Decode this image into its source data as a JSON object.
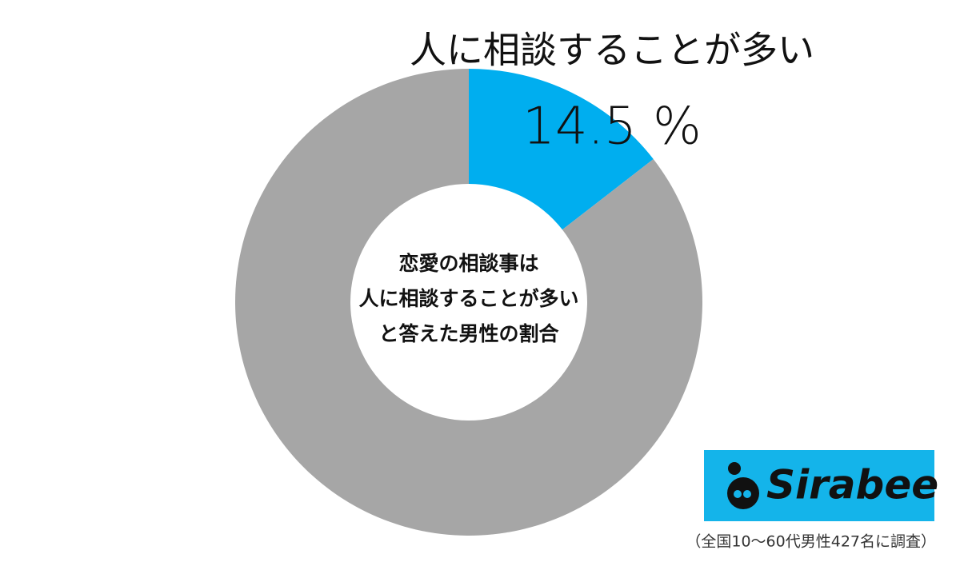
{
  "chart_data": {
    "type": "donut",
    "categories": [
      "人に相談することが多い",
      null
    ],
    "values": [
      14.5,
      85.5
    ],
    "value_labels": [
      "14.5 %",
      null
    ],
    "colors": [
      "#00aeef",
      "#a6a6a6"
    ],
    "center_text": [
      "恋愛の相談事は",
      "人に相談することが多い",
      "と答えた男性の割合"
    ],
    "logo": "Sirabee",
    "footnote": "（全国10～60代男性427名に調査）"
  }
}
